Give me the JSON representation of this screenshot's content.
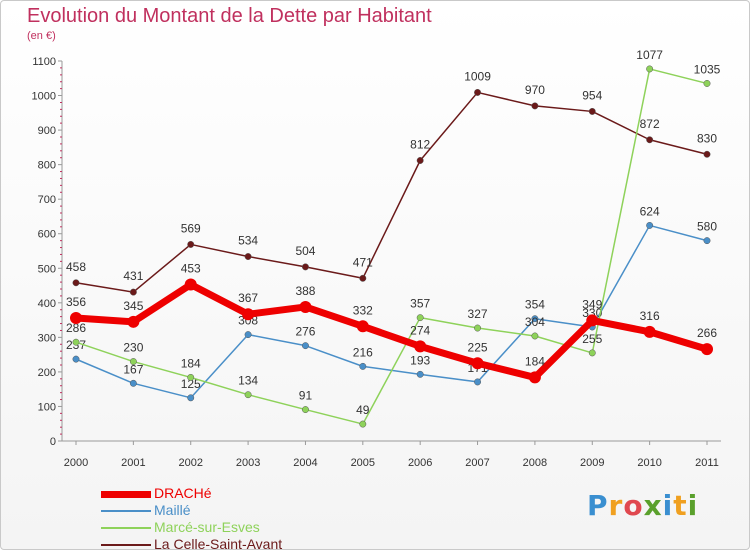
{
  "title": "Evolution du Montant de la Dette par Habitant",
  "unit": "(en €)",
  "logo": "Proxiti",
  "chart_data": {
    "type": "line",
    "title": "Evolution du Montant de la Dette par Habitant",
    "ylabel": "(en €)",
    "x": [
      "2000",
      "2001",
      "2002",
      "2003",
      "2004",
      "2005",
      "2006",
      "2007",
      "2008",
      "2009",
      "2010",
      "2011"
    ],
    "ylim": [
      0,
      1100
    ],
    "yticks": [
      0,
      100,
      200,
      300,
      400,
      500,
      600,
      700,
      800,
      900,
      1000,
      1100
    ],
    "grid": false,
    "legend": "bottom-left",
    "series": [
      {
        "name": "La Celle-Saint-Avant",
        "color": "#6b1a1a",
        "values": [
          458,
          431,
          569,
          534,
          504,
          471,
          812,
          1009,
          970,
          954,
          872,
          830
        ]
      },
      {
        "name": "Maillé",
        "color": "#4a8fc8",
        "values": [
          237,
          167,
          125,
          308,
          276,
          216,
          193,
          171,
          354,
          330,
          624,
          580
        ],
        "labels": [
          "237",
          "167",
          "125",
          "308",
          "276",
          "216",
          "193",
          "171",
          "354",
          "330",
          "624",
          "580"
        ]
      },
      {
        "name": "Marcé-sur-Esves",
        "color": "#8ed25a",
        "values": [
          286,
          230,
          184,
          134,
          91,
          49,
          357,
          327,
          304,
          255,
          1077,
          1035
        ]
      },
      {
        "name": "DRACHé",
        "color": "#ee0000",
        "values": [
          356,
          345,
          453,
          367,
          388,
          332,
          274,
          225,
          184,
          349,
          316,
          266
        ]
      }
    ]
  }
}
